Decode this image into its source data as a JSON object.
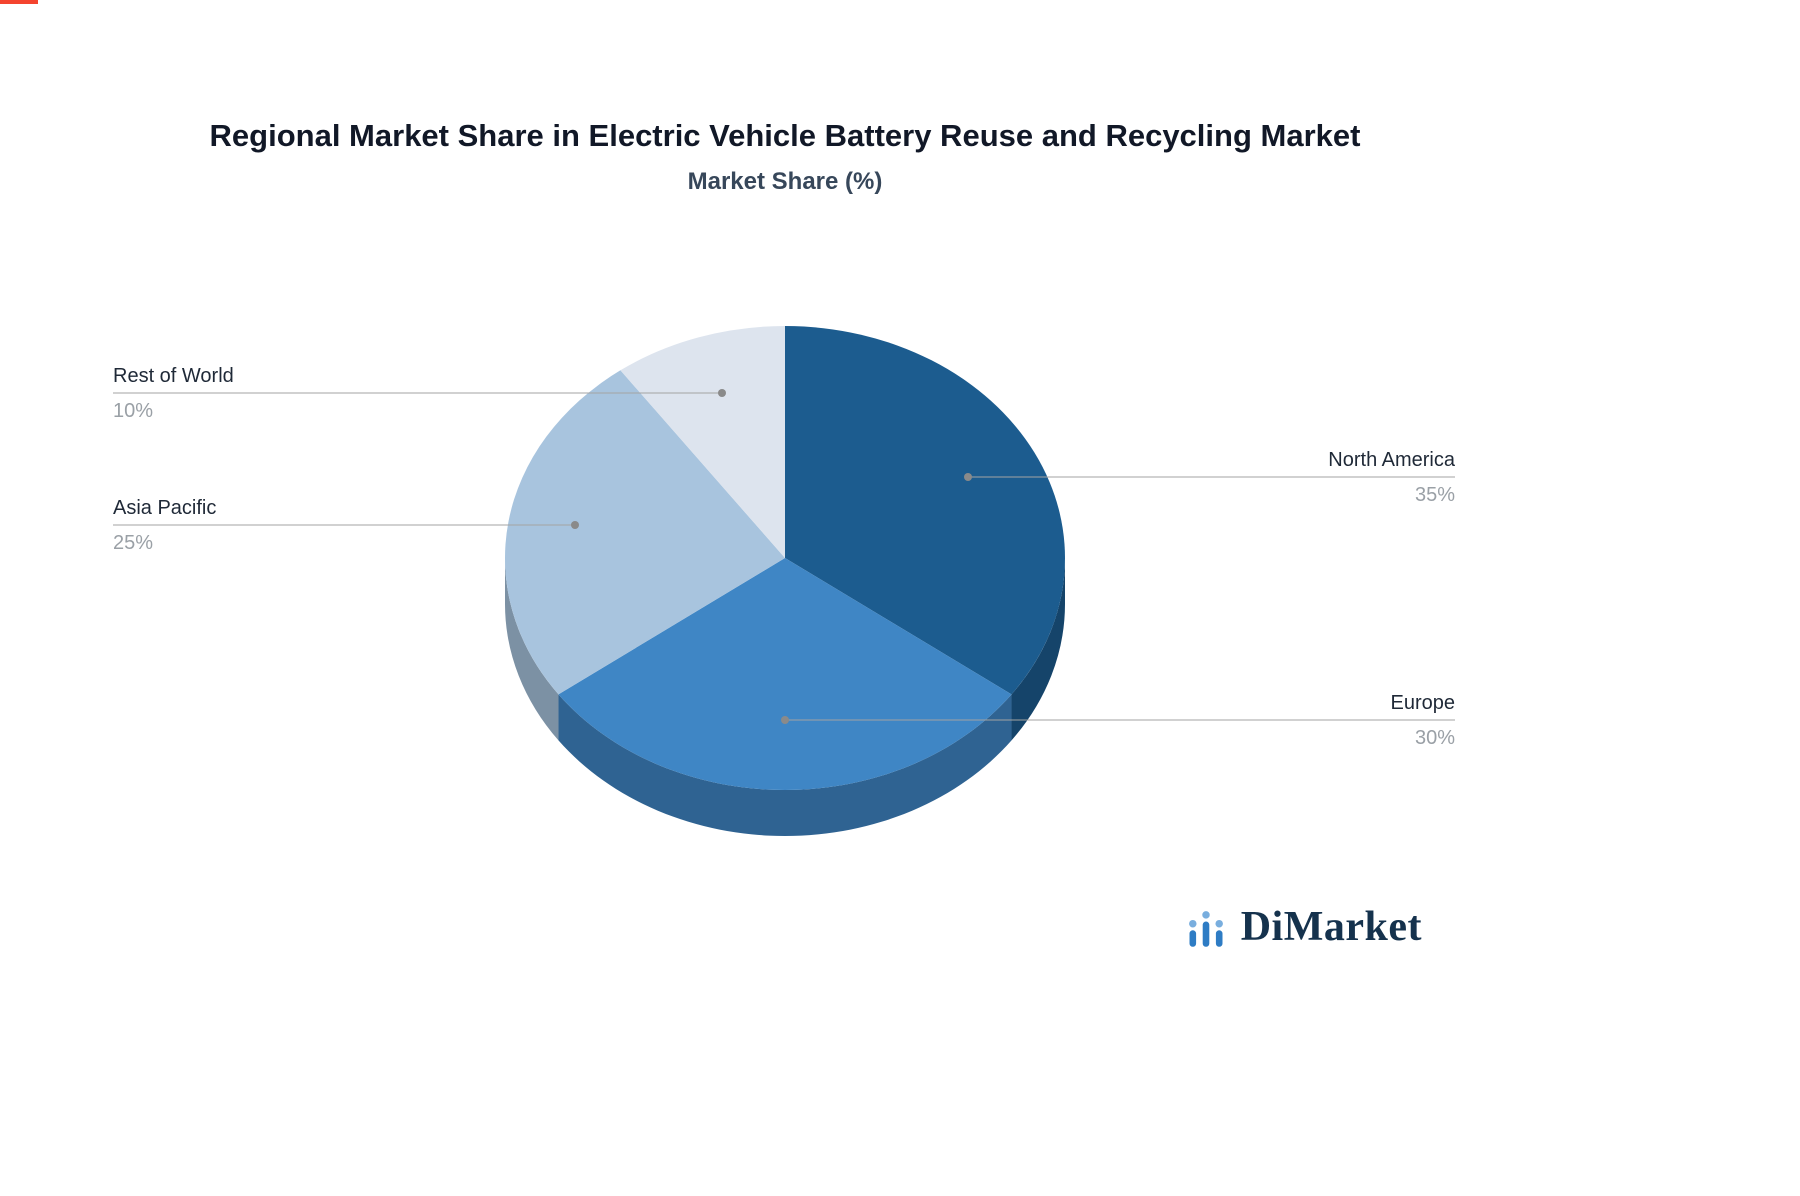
{
  "title": "Regional Market Share in Electric Vehicle Battery Reuse and Recycling Market",
  "subtitle": "Market Share (%)",
  "chart_data": {
    "type": "pie",
    "labels": [
      "North America",
      "Europe",
      "Asia Pacific",
      "Rest of World"
    ],
    "values": [
      35,
      30,
      25,
      10
    ],
    "display_values": [
      "35%",
      "30%",
      "25%",
      "10%"
    ],
    "colors": [
      "#1c5c8f",
      "#3f86c5",
      "#a8c4de",
      "#dde4ee"
    ],
    "title": "Regional Market Share in Electric Vehicle Battery Reuse and Recycling Market",
    "subtitle": "Market Share (%)",
    "start_angle_deg": -90,
    "direction": "clockwise",
    "style": "3d-pie",
    "legend_position": "callout-labels"
  },
  "brand": {
    "name": "DiMarket",
    "icon_bar_color": "#2e7cc4",
    "icon_dot_color": "#79aede",
    "text_color": "#15324d"
  }
}
